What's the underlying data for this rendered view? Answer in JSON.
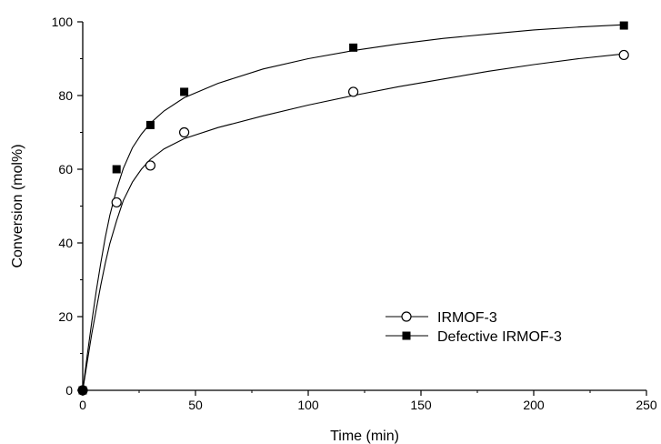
{
  "chart_data": {
    "type": "scatter",
    "xlabel": "Time (min)",
    "ylabel": "Conversion (mol%)",
    "xlim": [
      0,
      250
    ],
    "ylim": [
      0,
      100
    ],
    "xticks": [
      0,
      50,
      100,
      150,
      200,
      250
    ],
    "yticks": [
      0,
      20,
      40,
      60,
      80,
      100
    ],
    "grid": false,
    "legend_position": "bottom-right",
    "series": [
      {
        "name": "IRMOF-3",
        "marker": "open-circle",
        "color": "#000000",
        "x": [
          0,
          15,
          30,
          45,
          120,
          240
        ],
        "y": [
          0,
          51,
          61,
          70,
          81,
          91
        ],
        "fit": [
          [
            0,
            0
          ],
          [
            2,
            7.8
          ],
          [
            4,
            15.3
          ],
          [
            6,
            22
          ],
          [
            8,
            28.5
          ],
          [
            10,
            34.5
          ],
          [
            12,
            39.8
          ],
          [
            15,
            46
          ],
          [
            18,
            51.5
          ],
          [
            22,
            56.5
          ],
          [
            26,
            60
          ],
          [
            30,
            62.7
          ],
          [
            36,
            65.5
          ],
          [
            45,
            68.3
          ],
          [
            60,
            71.3
          ],
          [
            80,
            74.5
          ],
          [
            100,
            77.4
          ],
          [
            120,
            80
          ],
          [
            140,
            82.4
          ],
          [
            160,
            84.5
          ],
          [
            180,
            86.6
          ],
          [
            200,
            88.4
          ],
          [
            220,
            90
          ],
          [
            240,
            91.3
          ]
        ]
      },
      {
        "name": "Defective IRMOF-3",
        "marker": "filled-square",
        "color": "#000000",
        "x": [
          0,
          15,
          30,
          45,
          120,
          240
        ],
        "y": [
          0,
          60,
          72,
          81,
          93,
          99
        ],
        "fit": [
          [
            0,
            0
          ],
          [
            2,
            9.6
          ],
          [
            4,
            18.5
          ],
          [
            6,
            27
          ],
          [
            8,
            34.5
          ],
          [
            10,
            41.5
          ],
          [
            12,
            47.5
          ],
          [
            15,
            54.5
          ],
          [
            18,
            60.2
          ],
          [
            22,
            65.8
          ],
          [
            26,
            69.5
          ],
          [
            30,
            72.5
          ],
          [
            36,
            75.8
          ],
          [
            45,
            79.4
          ],
          [
            60,
            83.3
          ],
          [
            80,
            87.2
          ],
          [
            100,
            90
          ],
          [
            120,
            92.2
          ],
          [
            140,
            94
          ],
          [
            160,
            95.5
          ],
          [
            180,
            96.7
          ],
          [
            200,
            97.8
          ],
          [
            220,
            98.6
          ],
          [
            240,
            99.2
          ]
        ]
      }
    ]
  }
}
